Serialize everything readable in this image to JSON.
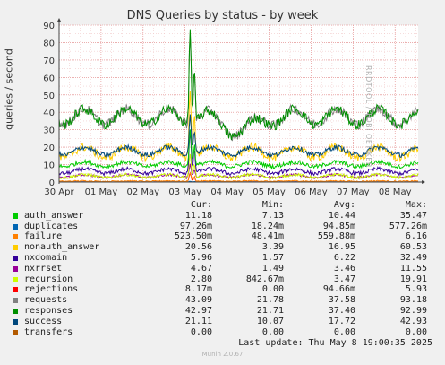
{
  "chart_data": {
    "type": "line",
    "title": "DNS Queries by status - by week",
    "ylabel": "queries / second",
    "ylim": [
      0,
      90
    ],
    "yticks": [
      0,
      10,
      20,
      30,
      40,
      50,
      60,
      70,
      80,
      90
    ],
    "xticks": [
      "30 Apr",
      "01 May",
      "02 May",
      "03 May",
      "04 May",
      "05 May",
      "06 May",
      "07 May",
      "08 May"
    ],
    "xrange_days": [
      0,
      8.55
    ],
    "grid": true,
    "legend_columns": [
      "Cur:",
      "Min:",
      "Avg:",
      "Max:"
    ],
    "series": [
      {
        "name": "auth_answer",
        "color": "#00cc00",
        "cur": "11.18",
        "min": "7.13",
        "avg": "10.44",
        "max": "35.47"
      },
      {
        "name": "duplicates",
        "color": "#0066b3",
        "cur": "97.26m",
        "min": "18.24m",
        "avg": "94.85m",
        "max": "577.26m"
      },
      {
        "name": "failure",
        "color": "#ff8000",
        "cur": "523.50m",
        "min": "48.41m",
        "avg": "559.88m",
        "max": "6.16"
      },
      {
        "name": "nonauth_answer",
        "color": "#ffcc00",
        "cur": "20.56",
        "min": "3.39",
        "avg": "16.95",
        "max": "60.53"
      },
      {
        "name": "nxdomain",
        "color": "#330099",
        "cur": "5.96",
        "min": "1.57",
        "avg": "6.22",
        "max": "32.49"
      },
      {
        "name": "nxrrset",
        "color": "#990099",
        "cur": "4.67",
        "min": "1.49",
        "avg": "3.46",
        "max": "11.55"
      },
      {
        "name": "recursion",
        "color": "#ccff00",
        "cur": "2.80",
        "min": "842.67m",
        "avg": "3.47",
        "max": "19.91"
      },
      {
        "name": "rejections",
        "color": "#ff0000",
        "cur": "8.17m",
        "min": "0.00",
        "avg": "94.66m",
        "max": "5.93"
      },
      {
        "name": "requests",
        "color": "#808080",
        "cur": "43.09",
        "min": "21.78",
        "avg": "37.58",
        "max": "93.18"
      },
      {
        "name": "responses",
        "color": "#008f00",
        "cur": "42.97",
        "min": "21.71",
        "avg": "37.40",
        "max": "92.99"
      },
      {
        "name": "success",
        "color": "#00487d",
        "cur": "21.11",
        "min": "10.07",
        "avg": "17.72",
        "max": "42.93"
      },
      {
        "name": "transfers",
        "color": "#b35a00",
        "cur": "0.00",
        "min": "0.00",
        "avg": "0.00",
        "max": "0.00"
      }
    ]
  },
  "footer": {
    "last_update": "Last update: Thu May  8 19:00:35 2025",
    "version": "Munin 2.0.67"
  },
  "watermark": "RRDTOOL / TOBI OETIKER"
}
